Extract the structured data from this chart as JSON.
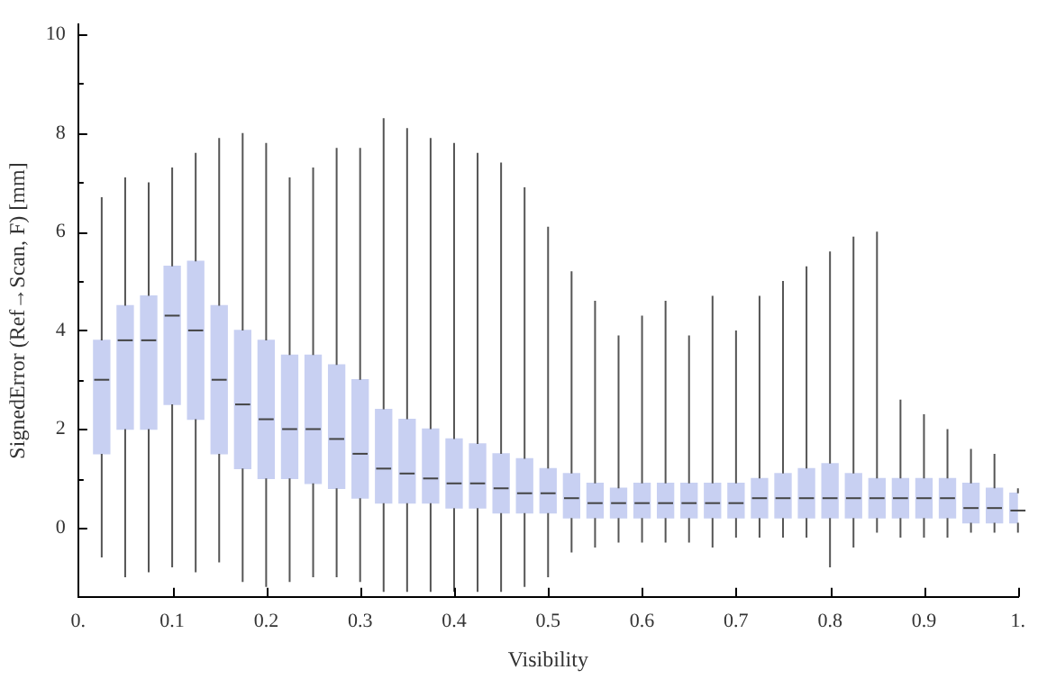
{
  "chart_data": {
    "type": "box",
    "xlabel": "Visibility",
    "ylabel": "SignedError (Ref→Scan, F) [mm]",
    "color": "#c8d0f2",
    "x": [
      0.025,
      0.05,
      0.075,
      0.1,
      0.125,
      0.15,
      0.175,
      0.2,
      0.225,
      0.25,
      0.275,
      0.3,
      0.325,
      0.35,
      0.375,
      0.4,
      0.425,
      0.45,
      0.475,
      0.5,
      0.525,
      0.55,
      0.575,
      0.6,
      0.625,
      0.65,
      0.675,
      0.7,
      0.725,
      0.75,
      0.775,
      0.8,
      0.825,
      0.85,
      0.875,
      0.9,
      0.925,
      0.95,
      0.975,
      1.0
    ],
    "boxes": [
      {
        "low": -0.6,
        "q1": 1.5,
        "median": 3,
        "q3": 3.8,
        "high": 6.7
      },
      {
        "low": -1,
        "q1": 2,
        "median": 3.8,
        "q3": 4.5,
        "high": 7.1
      },
      {
        "low": -0.9,
        "q1": 2,
        "median": 3.8,
        "q3": 4.7,
        "high": 7
      },
      {
        "low": -0.8,
        "q1": 2.5,
        "median": 4.3,
        "q3": 5.3,
        "high": 7.3
      },
      {
        "low": -0.9,
        "q1": 2.2,
        "median": 4,
        "q3": 5.4,
        "high": 7.6
      },
      {
        "low": -0.7,
        "q1": 1.5,
        "median": 3,
        "q3": 4.5,
        "high": 7.9
      },
      {
        "low": -1.1,
        "q1": 1.2,
        "median": 2.5,
        "q3": 4,
        "high": 8
      },
      {
        "low": -1.2,
        "q1": 1,
        "median": 2.2,
        "q3": 3.8,
        "high": 7.8
      },
      {
        "low": -1.1,
        "q1": 1,
        "median": 2,
        "q3": 3.5,
        "high": 7.1
      },
      {
        "low": -1,
        "q1": 0.9,
        "median": 2,
        "q3": 3.5,
        "high": 7.3
      },
      {
        "low": -1,
        "q1": 0.8,
        "median": 1.8,
        "q3": 3.3,
        "high": 7.7
      },
      {
        "low": -1.1,
        "q1": 0.6,
        "median": 1.5,
        "q3": 3,
        "high": 7.7
      },
      {
        "low": -1.3,
        "q1": 0.5,
        "median": 1.2,
        "q3": 2.4,
        "high": 8.3
      },
      {
        "low": -1.3,
        "q1": 0.5,
        "median": 1.1,
        "q3": 2.2,
        "high": 8.1
      },
      {
        "low": -1.3,
        "q1": 0.5,
        "median": 1,
        "q3": 2,
        "high": 7.9
      },
      {
        "low": -1.3,
        "q1": 0.4,
        "median": 0.9,
        "q3": 1.8,
        "high": 7.8
      },
      {
        "low": -1.3,
        "q1": 0.4,
        "median": 0.9,
        "q3": 1.7,
        "high": 7.6
      },
      {
        "low": -1.3,
        "q1": 0.3,
        "median": 0.8,
        "q3": 1.5,
        "high": 7.4
      },
      {
        "low": -1.2,
        "q1": 0.3,
        "median": 0.7,
        "q3": 1.4,
        "high": 6.9
      },
      {
        "low": -1,
        "q1": 0.3,
        "median": 0.7,
        "q3": 1.2,
        "high": 6.1
      },
      {
        "low": -0.5,
        "q1": 0.2,
        "median": 0.6,
        "q3": 1.1,
        "high": 5.2
      },
      {
        "low": -0.4,
        "q1": 0.2,
        "median": 0.5,
        "q3": 0.9,
        "high": 4.6
      },
      {
        "low": -0.3,
        "q1": 0.2,
        "median": 0.5,
        "q3": 0.8,
        "high": 3.9
      },
      {
        "low": -0.3,
        "q1": 0.2,
        "median": 0.5,
        "q3": 0.9,
        "high": 4.3
      },
      {
        "low": -0.3,
        "q1": 0.2,
        "median": 0.5,
        "q3": 0.9,
        "high": 4.6
      },
      {
        "low": -0.3,
        "q1": 0.2,
        "median": 0.5,
        "q3": 0.9,
        "high": 3.9
      },
      {
        "low": -0.4,
        "q1": 0.2,
        "median": 0.5,
        "q3": 0.9,
        "high": 4.7
      },
      {
        "low": -0.2,
        "q1": 0.2,
        "median": 0.5,
        "q3": 0.9,
        "high": 4
      },
      {
        "low": -0.2,
        "q1": 0.2,
        "median": 0.6,
        "q3": 1,
        "high": 4.7
      },
      {
        "low": -0.2,
        "q1": 0.2,
        "median": 0.6,
        "q3": 1.1,
        "high": 5
      },
      {
        "low": -0.2,
        "q1": 0.2,
        "median": 0.6,
        "q3": 1.2,
        "high": 5.3
      },
      {
        "low": -0.8,
        "q1": 0.2,
        "median": 0.6,
        "q3": 1.3,
        "high": 5.6
      },
      {
        "low": -0.4,
        "q1": 0.2,
        "median": 0.6,
        "q3": 1.1,
        "high": 5.9
      },
      {
        "low": -0.1,
        "q1": 0.2,
        "median": 0.6,
        "q3": 1,
        "high": 6
      },
      {
        "low": -0.2,
        "q1": 0.2,
        "median": 0.6,
        "q3": 1,
        "high": 2.6
      },
      {
        "low": -0.2,
        "q1": 0.2,
        "median": 0.6,
        "q3": 1,
        "high": 2.3
      },
      {
        "low": -0.2,
        "q1": 0.2,
        "median": 0.6,
        "q3": 1,
        "high": 2
      },
      {
        "low": -0.1,
        "q1": 0.1,
        "median": 0.4,
        "q3": 0.9,
        "high": 1.6
      },
      {
        "low": -0.1,
        "q1": 0.1,
        "median": 0.4,
        "q3": 0.8,
        "high": 1.5
      },
      {
        "low": -0.1,
        "q1": 0.1,
        "median": 0.35,
        "q3": 0.7,
        "high": 0.8
      }
    ],
    "xlim": [
      0,
      1.0
    ],
    "xticks": [
      {
        "value": 0,
        "label": "0."
      },
      0.1,
      0.2,
      0.3,
      0.4,
      0.5,
      0.6,
      0.7,
      0.8,
      0.9,
      {
        "value": 1,
        "label": "1."
      }
    ],
    "ylim": [
      -1.4,
      10.2
    ],
    "yticks": [
      0,
      {
        "value": 1,
        "label": null
      },
      2,
      {
        "value": 3,
        "label": null
      },
      4,
      {
        "value": 5,
        "label": null
      },
      6,
      {
        "value": 7,
        "label": null
      },
      8,
      {
        "value": 9,
        "label": null
      },
      10
    ],
    "grid": false,
    "legend": false
  }
}
